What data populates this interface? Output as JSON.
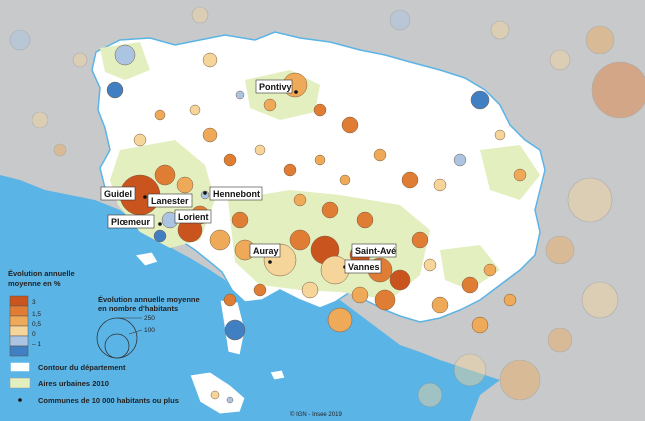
{
  "colors": {
    "sea": "#5bb4e6",
    "outside": "#c7c9cb",
    "department": "#ffffff",
    "urban_area": "#e3efbf",
    "class_high": "#c9541d",
    "class_mid_high": "#e07d35",
    "class_mid": "#eeaa58",
    "class_low": "#f6d59a",
    "class_neg": "#aac4e2",
    "class_neg_strong": "#3f7fc2"
  },
  "cities": [
    {
      "name": "Pontivy",
      "id": "pontivy"
    },
    {
      "name": "Guidel",
      "id": "guidel"
    },
    {
      "name": "Lanester",
      "id": "lanester"
    },
    {
      "name": "Hennebont",
      "id": "hennebont"
    },
    {
      "name": "Lorient",
      "id": "lorient"
    },
    {
      "name": "Plœmeur",
      "id": "ploemeur"
    },
    {
      "name": "Auray",
      "id": "auray"
    },
    {
      "name": "Saint-Avé",
      "id": "saint-ave"
    },
    {
      "name": "Vannes",
      "id": "vannes"
    }
  ],
  "legend": {
    "color_title_line1": "Évolution annuelle",
    "color_title_line2": "moyenne en %",
    "color_classes": [
      "3",
      "1,5",
      "0,5",
      "0",
      "– 1"
    ],
    "size_title_line1": "Évolution annuelle moyenne",
    "size_title_line2": "en nombre d'habitants",
    "size_values": [
      "250",
      "100"
    ],
    "department_outline": "Contour du département",
    "urban_areas": "Aires urbaines 2010",
    "communes_10000": "Communes de 10 000 habitants ou plus"
  },
  "credit": "© IGN - Insee 2019"
}
